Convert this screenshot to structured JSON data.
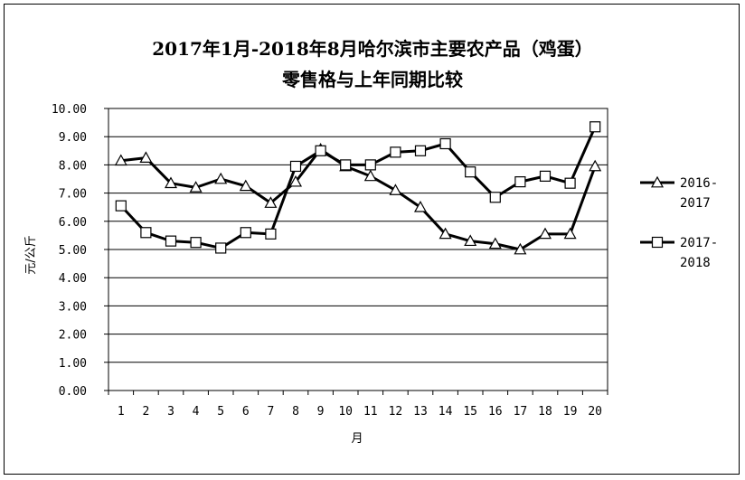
{
  "chart_data": {
    "type": "line",
    "title_line1": "2017年1月-2018年8月哈尔滨市主要农产品（鸡蛋）",
    "title_line2": "零售格与上年同期比较",
    "xlabel": "月",
    "ylabel": "元/公斤",
    "categories": [
      "1",
      "2",
      "3",
      "4",
      "5",
      "6",
      "7",
      "8",
      "9",
      "10",
      "11",
      "12",
      "13",
      "14",
      "15",
      "16",
      "17",
      "18",
      "19",
      "20"
    ],
    "ylim": [
      0,
      10
    ],
    "yticks": [
      "0.00",
      "1.00",
      "2.00",
      "3.00",
      "4.00",
      "5.00",
      "6.00",
      "7.00",
      "8.00",
      "9.00",
      "10.00"
    ],
    "grid": true,
    "legend_position": "right",
    "series": [
      {
        "name": "2016-2017",
        "name_lines": [
          "2016-",
          "2017"
        ],
        "marker": "triangle",
        "color": "#000000",
        "values": [
          8.15,
          8.25,
          7.35,
          7.2,
          7.5,
          7.25,
          6.65,
          7.4,
          8.55,
          7.95,
          7.6,
          7.1,
          6.5,
          5.55,
          5.3,
          5.2,
          5.0,
          5.55,
          5.55,
          7.95
        ]
      },
      {
        "name": "2017-2018",
        "name_lines": [
          "2017-",
          "2018"
        ],
        "marker": "square",
        "color": "#000000",
        "values": [
          6.55,
          5.6,
          5.3,
          5.25,
          5.05,
          5.6,
          5.55,
          7.95,
          8.5,
          8.0,
          8.0,
          8.45,
          8.5,
          8.75,
          7.75,
          6.85,
          7.4,
          7.6,
          7.35,
          9.35
        ]
      }
    ]
  }
}
